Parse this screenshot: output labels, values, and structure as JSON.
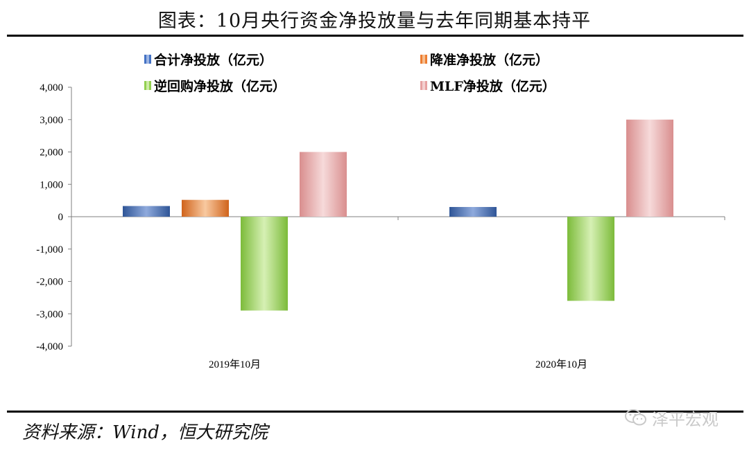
{
  "title": "图表：10月央行资金净投放量与去年同期基本持平",
  "source": "资料来源：Wind，恒大研究院",
  "watermark": "泽平宏观",
  "colors": {
    "total": "#4472C4",
    "rrr": "#ED7D31",
    "reverse_repo": "#92D050",
    "mlf": "#E6A1A1"
  },
  "chart_data": {
    "type": "bar",
    "categories": [
      "2019年10月",
      "2020年10月"
    ],
    "series": [
      {
        "name": "合计净投放（亿元）",
        "values": [
          330,
          300
        ]
      },
      {
        "name": "降准净投放（亿元）",
        "values": [
          520,
          0
        ]
      },
      {
        "name": "逆回购净投放（亿元）",
        "values": [
          -2900,
          -2600
        ]
      },
      {
        "name": "MLF净投放（亿元）",
        "values": [
          2000,
          3000
        ]
      }
    ],
    "ylim": [
      -4000,
      4000
    ],
    "yticks": [
      4000,
      3000,
      2000,
      1000,
      0,
      -1000,
      -2000,
      -3000,
      -4000
    ],
    "ytick_labels": [
      "4,000",
      "3,000",
      "2,000",
      "1,000",
      "0",
      "-1,000",
      "-2,000",
      "-3,000",
      "-4,000"
    ],
    "legend_position": "top",
    "grid": false
  }
}
